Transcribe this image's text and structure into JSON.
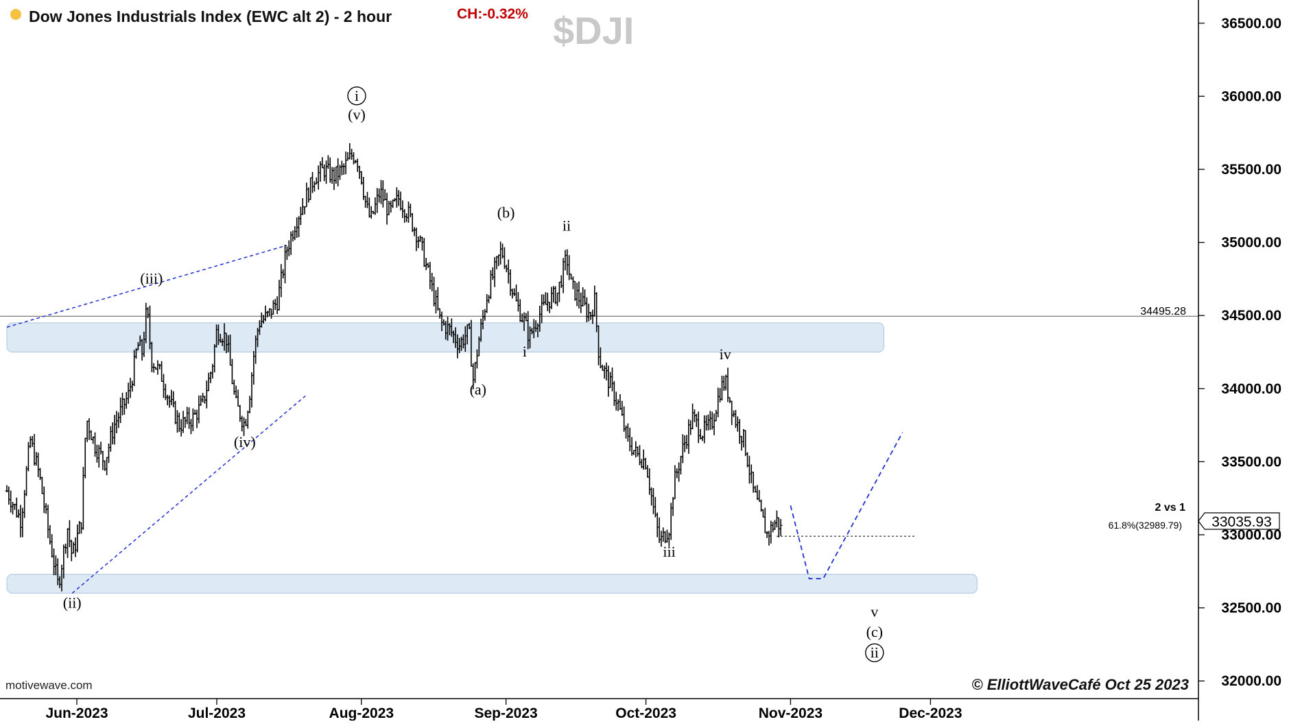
{
  "header": {
    "title": "Dow Jones Industrials Index (EWC alt 2) - 2 hour",
    "change": "CH:-0.32%",
    "symbol": "$DJI",
    "status_color": "#f5c242"
  },
  "footer": {
    "source": "motivewave.com",
    "copyright": "© ElliottWaveCafé Oct 25 2023"
  },
  "price_tag": "33035.93",
  "reference": {
    "line_label": "34495.28",
    "fib_label": "61.8%(32989.79)",
    "fib_title": "2 vs 1"
  },
  "colors": {
    "zone_fill": "#dde9f4",
    "zone_stroke": "#b8cde0",
    "projection": "#1f2fd0",
    "price_bar": "#000000"
  },
  "chart_data": {
    "type": "ohlc",
    "interval": "2 hour",
    "ylim": [
      31850,
      36800
    ],
    "y_ticks": [
      {
        "value": 32000,
        "label": "32000.00"
      },
      {
        "value": 32500,
        "label": "32500.00"
      },
      {
        "value": 33000,
        "label": "33000.00"
      },
      {
        "value": 33500,
        "label": "33500.00"
      },
      {
        "value": 34000,
        "label": "34000.00"
      },
      {
        "value": 34500,
        "label": "34500.00"
      },
      {
        "value": 35000,
        "label": "35000.00"
      },
      {
        "value": 35500,
        "label": "35500.00"
      },
      {
        "value": 36000,
        "label": "36000.00"
      },
      {
        "value": 36500,
        "label": "36500.00"
      }
    ],
    "x_ticks": [
      {
        "date": "2023-06-01",
        "label": "Jun-2023"
      },
      {
        "date": "2023-07-01",
        "label": "Jul-2023"
      },
      {
        "date": "2023-08-01",
        "label": "Aug-2023"
      },
      {
        "date": "2023-09-01",
        "label": "Sep-2023"
      },
      {
        "date": "2023-10-01",
        "label": "Oct-2023"
      },
      {
        "date": "2023-11-01",
        "label": "Nov-2023"
      },
      {
        "date": "2023-12-01",
        "label": "Dec-2023"
      }
    ],
    "price_path": [
      [
        "2023-05-17",
        33300
      ],
      [
        "2023-05-20",
        33100
      ],
      [
        "2023-05-22",
        33650
      ],
      [
        "2023-05-24",
        33400
      ],
      [
        "2023-05-26",
        33000
      ],
      [
        "2023-05-28",
        32650
      ],
      [
        "2023-05-30",
        33050
      ],
      [
        "2023-05-31",
        32850
      ],
      [
        "2023-06-02",
        33100
      ],
      [
        "2023-06-03",
        33800
      ],
      [
        "2023-06-05",
        33600
      ],
      [
        "2023-06-07",
        33500
      ],
      [
        "2023-06-09",
        33750
      ],
      [
        "2023-06-12",
        33950
      ],
      [
        "2023-06-13",
        34100
      ],
      [
        "2023-06-14",
        34300
      ],
      [
        "2023-06-15",
        34250
      ],
      [
        "2023-06-16",
        34550
      ],
      [
        "2023-06-17",
        34200
      ],
      [
        "2023-06-19",
        34100
      ],
      [
        "2023-06-21",
        33900
      ],
      [
        "2023-06-23",
        33750
      ],
      [
        "2023-06-26",
        33800
      ],
      [
        "2023-06-28",
        33900
      ],
      [
        "2023-06-30",
        34150
      ],
      [
        "2023-07-01",
        34400
      ],
      [
        "2023-07-03",
        34350
      ],
      [
        "2023-07-05",
        33900
      ],
      [
        "2023-07-07",
        33750
      ],
      [
        "2023-07-08",
        33950
      ],
      [
        "2023-07-09",
        34250
      ],
      [
        "2023-07-10",
        34450
      ],
      [
        "2023-07-12",
        34500
      ],
      [
        "2023-07-14",
        34600
      ],
      [
        "2023-07-16",
        34950
      ],
      [
        "2023-07-18",
        35150
      ],
      [
        "2023-07-20",
        35300
      ],
      [
        "2023-07-22",
        35450
      ],
      [
        "2023-07-24",
        35500
      ],
      [
        "2023-07-26",
        35450
      ],
      [
        "2023-07-28",
        35500
      ],
      [
        "2023-07-30",
        35600
      ],
      [
        "2023-07-31",
        35580
      ],
      [
        "2023-08-01",
        35450
      ],
      [
        "2023-08-02",
        35250
      ],
      [
        "2023-08-03",
        35150
      ],
      [
        "2023-08-05",
        35350
      ],
      [
        "2023-08-07",
        35200
      ],
      [
        "2023-08-09",
        35300
      ],
      [
        "2023-08-11",
        35200
      ],
      [
        "2023-08-13",
        35050
      ],
      [
        "2023-08-14",
        34950
      ],
      [
        "2023-08-16",
        34700
      ],
      [
        "2023-08-18",
        34450
      ],
      [
        "2023-08-20",
        34400
      ],
      [
        "2023-08-22",
        34300
      ],
      [
        "2023-08-24",
        34400
      ],
      [
        "2023-08-25",
        34050
      ],
      [
        "2023-08-26",
        34300
      ],
      [
        "2023-08-28",
        34650
      ],
      [
        "2023-08-30",
        34850
      ],
      [
        "2023-08-31",
        34950
      ],
      [
        "2023-09-01",
        34850
      ],
      [
        "2023-09-03",
        34600
      ],
      [
        "2023-09-05",
        34450
      ],
      [
        "2023-09-06",
        34350
      ],
      [
        "2023-09-08",
        34500
      ],
      [
        "2023-09-10",
        34600
      ],
      [
        "2023-09-12",
        34650
      ],
      [
        "2023-09-14",
        34900
      ],
      [
        "2023-09-15",
        34700
      ],
      [
        "2023-09-17",
        34600
      ],
      [
        "2023-09-19",
        34500
      ],
      [
        "2023-09-20",
        34600
      ],
      [
        "2023-09-21",
        34200
      ],
      [
        "2023-09-23",
        34050
      ],
      [
        "2023-09-25",
        33900
      ],
      [
        "2023-09-27",
        33650
      ],
      [
        "2023-09-29",
        33550
      ],
      [
        "2023-10-01",
        33500
      ],
      [
        "2023-10-03",
        33100
      ],
      [
        "2023-10-04",
        32950
      ],
      [
        "2023-10-06",
        33050
      ],
      [
        "2023-10-07",
        33350
      ],
      [
        "2023-10-09",
        33600
      ],
      [
        "2023-10-11",
        33800
      ],
      [
        "2023-10-13",
        33700
      ],
      [
        "2023-10-15",
        33750
      ],
      [
        "2023-10-17",
        34000
      ],
      [
        "2023-10-18",
        34050
      ],
      [
        "2023-10-20",
        33800
      ],
      [
        "2023-10-22",
        33650
      ],
      [
        "2023-10-24",
        33300
      ],
      [
        "2023-10-26",
        33100
      ],
      [
        "2023-10-27",
        33000
      ],
      [
        "2023-10-29",
        33100
      ],
      [
        "2023-10-30",
        33035
      ]
    ],
    "projection": [
      [
        "2023-11-01",
        33200
      ],
      [
        "2023-11-05",
        32700
      ],
      [
        "2023-11-08",
        32700
      ],
      [
        "2023-11-25",
        33700
      ]
    ],
    "zones": [
      {
        "from": "2023-05-17",
        "to": "2023-11-21",
        "low": 34250,
        "high": 34450
      },
      {
        "from": "2023-05-17",
        "to": "2023-12-11",
        "low": 32600,
        "high": 32730
      }
    ],
    "trendlines": [
      {
        "points": [
          [
            "2023-05-17",
            34420
          ],
          [
            "2023-07-16",
            34980
          ]
        ]
      },
      {
        "points": [
          [
            "2023-05-31",
            32600
          ],
          [
            "2023-07-20",
            33950
          ]
        ]
      }
    ],
    "reference_line": {
      "value": 34495.28
    },
    "fib_line": {
      "value": 32989.79,
      "from": "2023-10-29",
      "to": "2023-11-28"
    },
    "wave_labels": [
      {
        "text": "(ii)",
        "date": "2023-05-31",
        "value": 32500
      },
      {
        "text": "(iii)",
        "date": "2023-06-17",
        "value": 34720
      },
      {
        "text": "(iv)",
        "date": "2023-07-07",
        "value": 33600
      },
      {
        "text": "(v)",
        "date": "2023-07-31",
        "value": 35840
      },
      {
        "text": "i",
        "date": "2023-07-31",
        "value": 35970,
        "circled": true
      },
      {
        "text": "(a)",
        "date": "2023-08-26",
        "value": 33960
      },
      {
        "text": "(b)",
        "date": "2023-09-01",
        "value": 35170
      },
      {
        "text": "i",
        "date": "2023-09-05",
        "value": 34220
      },
      {
        "text": "ii",
        "date": "2023-09-14",
        "value": 35080
      },
      {
        "text": "iii",
        "date": "2023-10-06",
        "value": 32850
      },
      {
        "text": "iv",
        "date": "2023-10-18",
        "value": 34200
      },
      {
        "text": "v",
        "date": "2023-11-19",
        "value": 32440
      },
      {
        "text": "(c)",
        "date": "2023-11-19",
        "value": 32300
      },
      {
        "text": "ii",
        "date": "2023-11-19",
        "value": 32160,
        "circled": true
      }
    ]
  }
}
